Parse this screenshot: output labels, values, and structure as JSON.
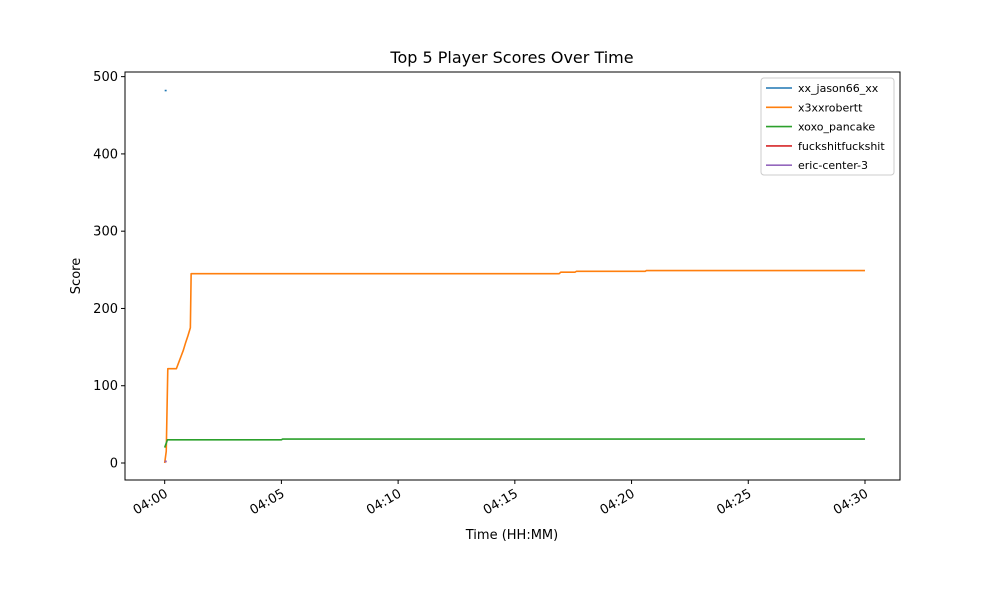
{
  "chart_data": {
    "type": "line",
    "title": "Top 5 Player Scores Over Time",
    "xlabel": "Time (HH:MM)",
    "ylabel": "Score",
    "xlim": [
      "03:58.3",
      "04:31.5"
    ],
    "ylim": [
      -22,
      506
    ],
    "x_ticks": [
      "04:00",
      "04:05",
      "04:10",
      "04:15",
      "04:20",
      "04:25",
      "04:30"
    ],
    "y_ticks": [
      0,
      100,
      200,
      300,
      400,
      500
    ],
    "grid": false,
    "legend": "top-right",
    "series": [
      {
        "name": "xx_jason66_xx",
        "color": "#1f77b4",
        "points": [
          [
            "04:00:00",
            482
          ],
          [
            "04:00:05",
            482
          ]
        ]
      },
      {
        "name": "x3xxrobertt",
        "color": "#ff7f0e",
        "points": [
          [
            "04:00:00",
            0
          ],
          [
            "04:00:04",
            15
          ],
          [
            "04:00:08",
            122
          ],
          [
            "04:00:30",
            122
          ],
          [
            "04:00:36",
            130
          ],
          [
            "04:00:42",
            138
          ],
          [
            "04:00:48",
            146
          ],
          [
            "04:00:54",
            156
          ],
          [
            "04:01:00",
            165
          ],
          [
            "04:01:06",
            175
          ],
          [
            "04:01:08",
            245
          ],
          [
            "04:16:54",
            245
          ],
          [
            "04:16:58",
            247
          ],
          [
            "04:17:35",
            247
          ],
          [
            "04:17:38",
            248
          ],
          [
            "04:20:35",
            248
          ],
          [
            "04:20:38",
            249
          ],
          [
            "04:30:00",
            249
          ]
        ]
      },
      {
        "name": "xoxo_pancake",
        "color": "#2ca02c",
        "points": [
          [
            "04:00:00",
            20
          ],
          [
            "04:00:07",
            30
          ],
          [
            "04:05:00",
            30
          ],
          [
            "04:05:03",
            31
          ],
          [
            "04:30:00",
            31
          ]
        ]
      },
      {
        "name": "fuckshitfuckshit",
        "color": "#d62728",
        "points": [
          [
            "04:00:00",
            2
          ],
          [
            "04:00:05",
            2
          ]
        ]
      },
      {
        "name": "eric-center-3",
        "color": "#9467bd",
        "points": [
          [
            "04:00:00",
            2
          ],
          [
            "04:00:05",
            2
          ]
        ]
      }
    ]
  }
}
